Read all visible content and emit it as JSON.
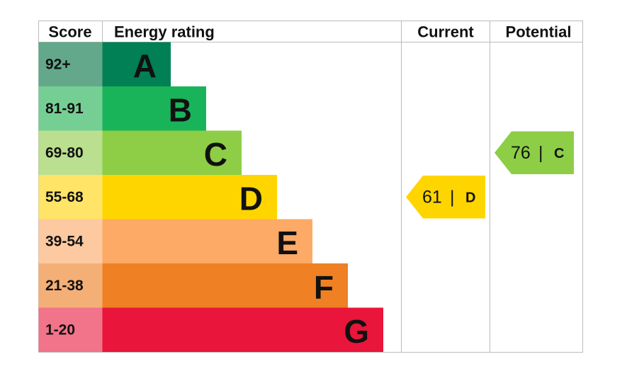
{
  "header": {
    "score": "Score",
    "energy_rating": "Energy rating",
    "current": "Current",
    "potential": "Potential"
  },
  "bands": [
    {
      "score": "92+",
      "letter": "A",
      "color": "#008054",
      "score_color": "#64a88b"
    },
    {
      "score": "81-91",
      "letter": "B",
      "color": "#19b459",
      "score_color": "#75cf95"
    },
    {
      "score": "69-80",
      "letter": "C",
      "color": "#8dce46",
      "score_color": "#badf8f"
    },
    {
      "score": "55-68",
      "letter": "D",
      "color": "#ffd500",
      "score_color": "#ffe468"
    },
    {
      "score": "39-54",
      "letter": "E",
      "color": "#fcaa65",
      "score_color": "#fdc9a0"
    },
    {
      "score": "21-38",
      "letter": "F",
      "color": "#ef8023",
      "score_color": "#f4af76"
    },
    {
      "score": "1-20",
      "letter": "G",
      "color": "#e9153b",
      "score_color": "#f1748a"
    }
  ],
  "current": {
    "score": 61,
    "separator": "|",
    "rating": "D"
  },
  "potential": {
    "score": 76,
    "separator": "|",
    "rating": "C"
  }
}
